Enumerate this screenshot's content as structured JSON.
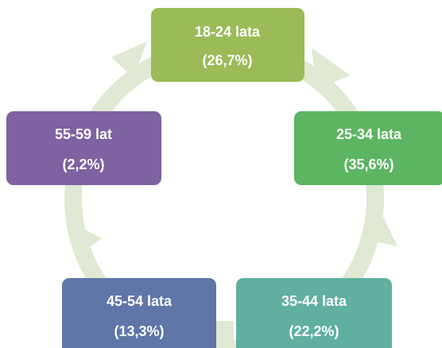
{
  "nodes": [
    {
      "label": "18-24 lata",
      "value": "(26,7%)"
    },
    {
      "label": "25-34 lata",
      "value": "(35,6%)"
    },
    {
      "label": "35-44 lata",
      "value": "(22,2%)"
    },
    {
      "label": "45-54 lata",
      "value": "(13,3%)"
    },
    {
      "label": "55-59 lat",
      "value": "(2,2%)"
    }
  ]
}
